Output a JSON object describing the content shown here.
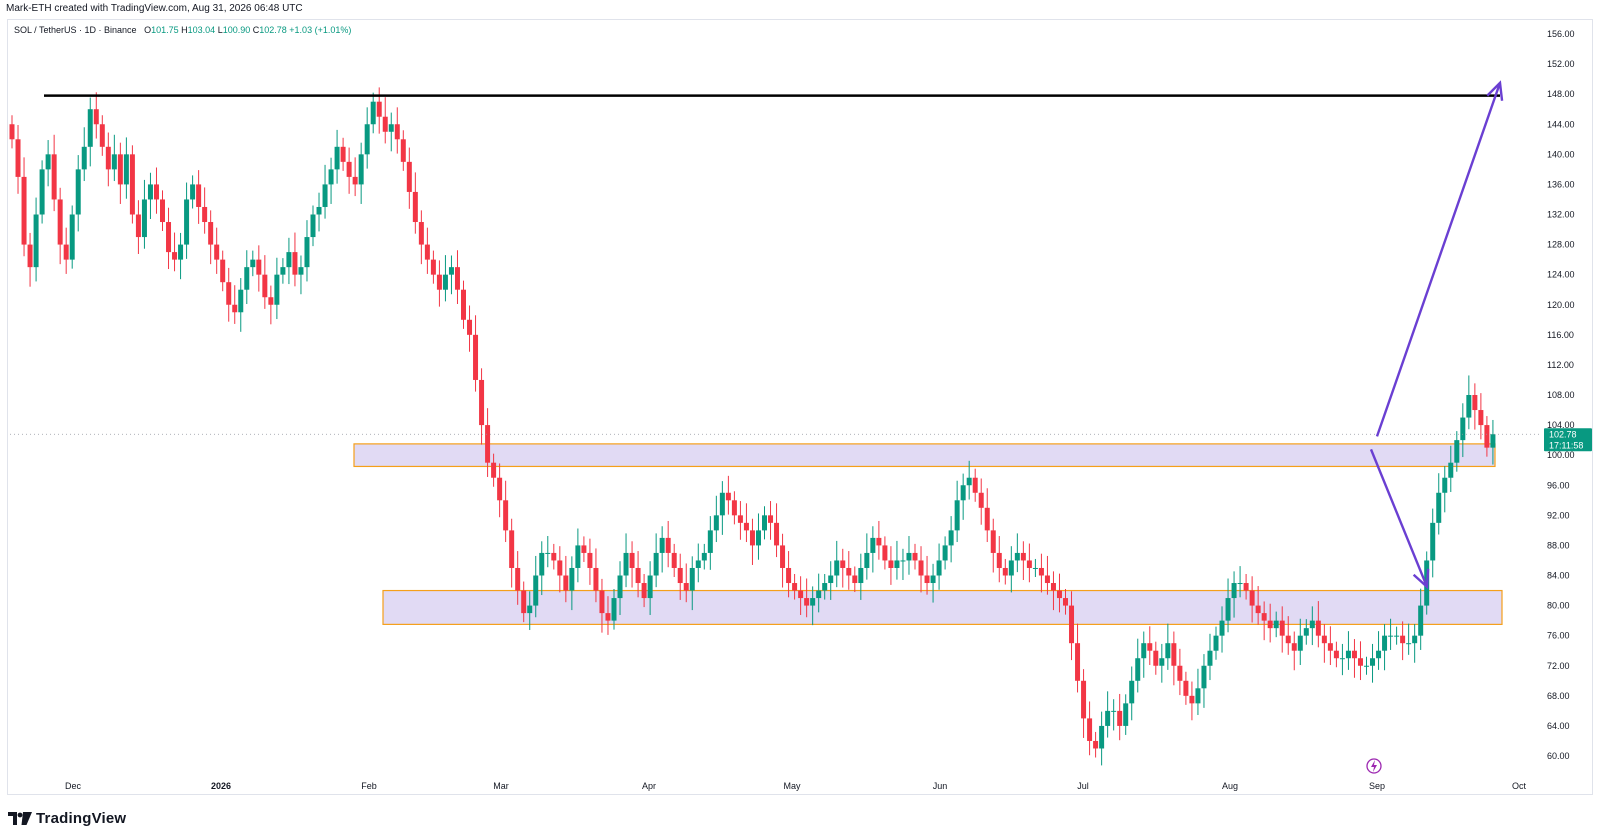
{
  "header": {
    "credit": "Mark-ETH created with TradingView.com, Aug 31, 2026 06:48 UTC"
  },
  "legend": {
    "symbol": "SOL / TetherUS · 1D · Binance",
    "o_label": "O",
    "o_value": "101.75",
    "h_label": "H",
    "h_value": "103.04",
    "l_label": "L",
    "l_value": "100.90",
    "c_label": "C",
    "c_value": "102.78",
    "change": "+1.03 (+1.01%)"
  },
  "price_badge": {
    "price": "102.78",
    "countdown": "17:11:58",
    "color": "#089981"
  },
  "brand": {
    "name": "TradingView"
  },
  "colors": {
    "up": "#089981",
    "down": "#f23645",
    "zone_fill": "#dcd3f2",
    "zone_border": "#f59f1a",
    "arrow": "#6a3fd2",
    "resistance_line": "#000000"
  },
  "chart_data": {
    "type": "candlestick",
    "symbol": "SOL / TetherUS",
    "timeframe": "1D",
    "exchange": "Binance",
    "y_axis_ticks": [
      "60.00",
      "64.00",
      "68.00",
      "72.00",
      "76.00",
      "80.00",
      "84.00",
      "88.00",
      "92.00",
      "96.00",
      "100.00",
      "104.00",
      "108.00",
      "112.00",
      "116.00",
      "120.00",
      "124.00",
      "128.00",
      "132.00",
      "136.00",
      "140.00",
      "144.00",
      "148.00",
      "152.00",
      "156.00"
    ],
    "ylim": [
      58,
      159
    ],
    "x_axis_labels": [
      "Dec",
      "2026",
      "Feb",
      "Mar",
      "Apr",
      "May",
      "Jun",
      "Jul",
      "Aug",
      "Sep",
      "Oct"
    ],
    "last_price": 102.78,
    "resistance_line": 147.8,
    "zones": [
      {
        "low": 98.5,
        "high": 101.5
      },
      {
        "low": 77.5,
        "high": 82.0
      }
    ],
    "projection": {
      "from": 102.5,
      "up_target": 149.5,
      "down_target": 82.5
    },
    "series": [
      {
        "date": "2025-11-25",
        "values": [
          142,
          137,
          128,
          125,
          132,
          138,
          140,
          134,
          128,
          126,
          132,
          138,
          141,
          146,
          144,
          141,
          138,
          140,
          136,
          140,
          132,
          129,
          134,
          136,
          134,
          131,
          127,
          126,
          128,
          134,
          136,
          133,
          131,
          128,
          126,
          123,
          120,
          119,
          122,
          125,
          126,
          124,
          121,
          120,
          124,
          125,
          127,
          124,
          125,
          129,
          132,
          133,
          136,
          138,
          141,
          139,
          137,
          136,
          140,
          144,
          147,
          145,
          143,
          144,
          142,
          139,
          135,
          131,
          128,
          126,
          124,
          122,
          124,
          125,
          122,
          118,
          116,
          110,
          104,
          99,
          97,
          94,
          90,
          85,
          82,
          79,
          80,
          84,
          87,
          87,
          86,
          84,
          82,
          85,
          88,
          87,
          85,
          82,
          79,
          78,
          81,
          84,
          87,
          85,
          83,
          81,
          84,
          87,
          89,
          87,
          85,
          83,
          82,
          85,
          86,
          87,
          90,
          92,
          95,
          94,
          92,
          91,
          90,
          88,
          90,
          92,
          91,
          88,
          85,
          83,
          82,
          81,
          80,
          81,
          82,
          83,
          84,
          86,
          85,
          84,
          83,
          85,
          87,
          89,
          88,
          86,
          85,
          86,
          86,
          87,
          86,
          84,
          83,
          84,
          86,
          88,
          90,
          94,
          96,
          97,
          95,
          93,
          90,
          87,
          85,
          84,
          86,
          87,
          86,
          85,
          85,
          84,
          83,
          82,
          81,
          80,
          75,
          70,
          65,
          62,
          61,
          64,
          66,
          66,
          64,
          67,
          70,
          73,
          75,
          74,
          72,
          73,
          75,
          72,
          70,
          68,
          67,
          69,
          72,
          74,
          76,
          78,
          81,
          83,
          83,
          82,
          80,
          79,
          78,
          77,
          78,
          76,
          75,
          74,
          76,
          77,
          78,
          76,
          75,
          74,
          73,
          73,
          74,
          73,
          72,
          72,
          73,
          74,
          76,
          76,
          76,
          75,
          75,
          76,
          80,
          86,
          91,
          95,
          97,
          99,
          102,
          105,
          108,
          106,
          104,
          101,
          102.78
        ]
      }
    ]
  }
}
